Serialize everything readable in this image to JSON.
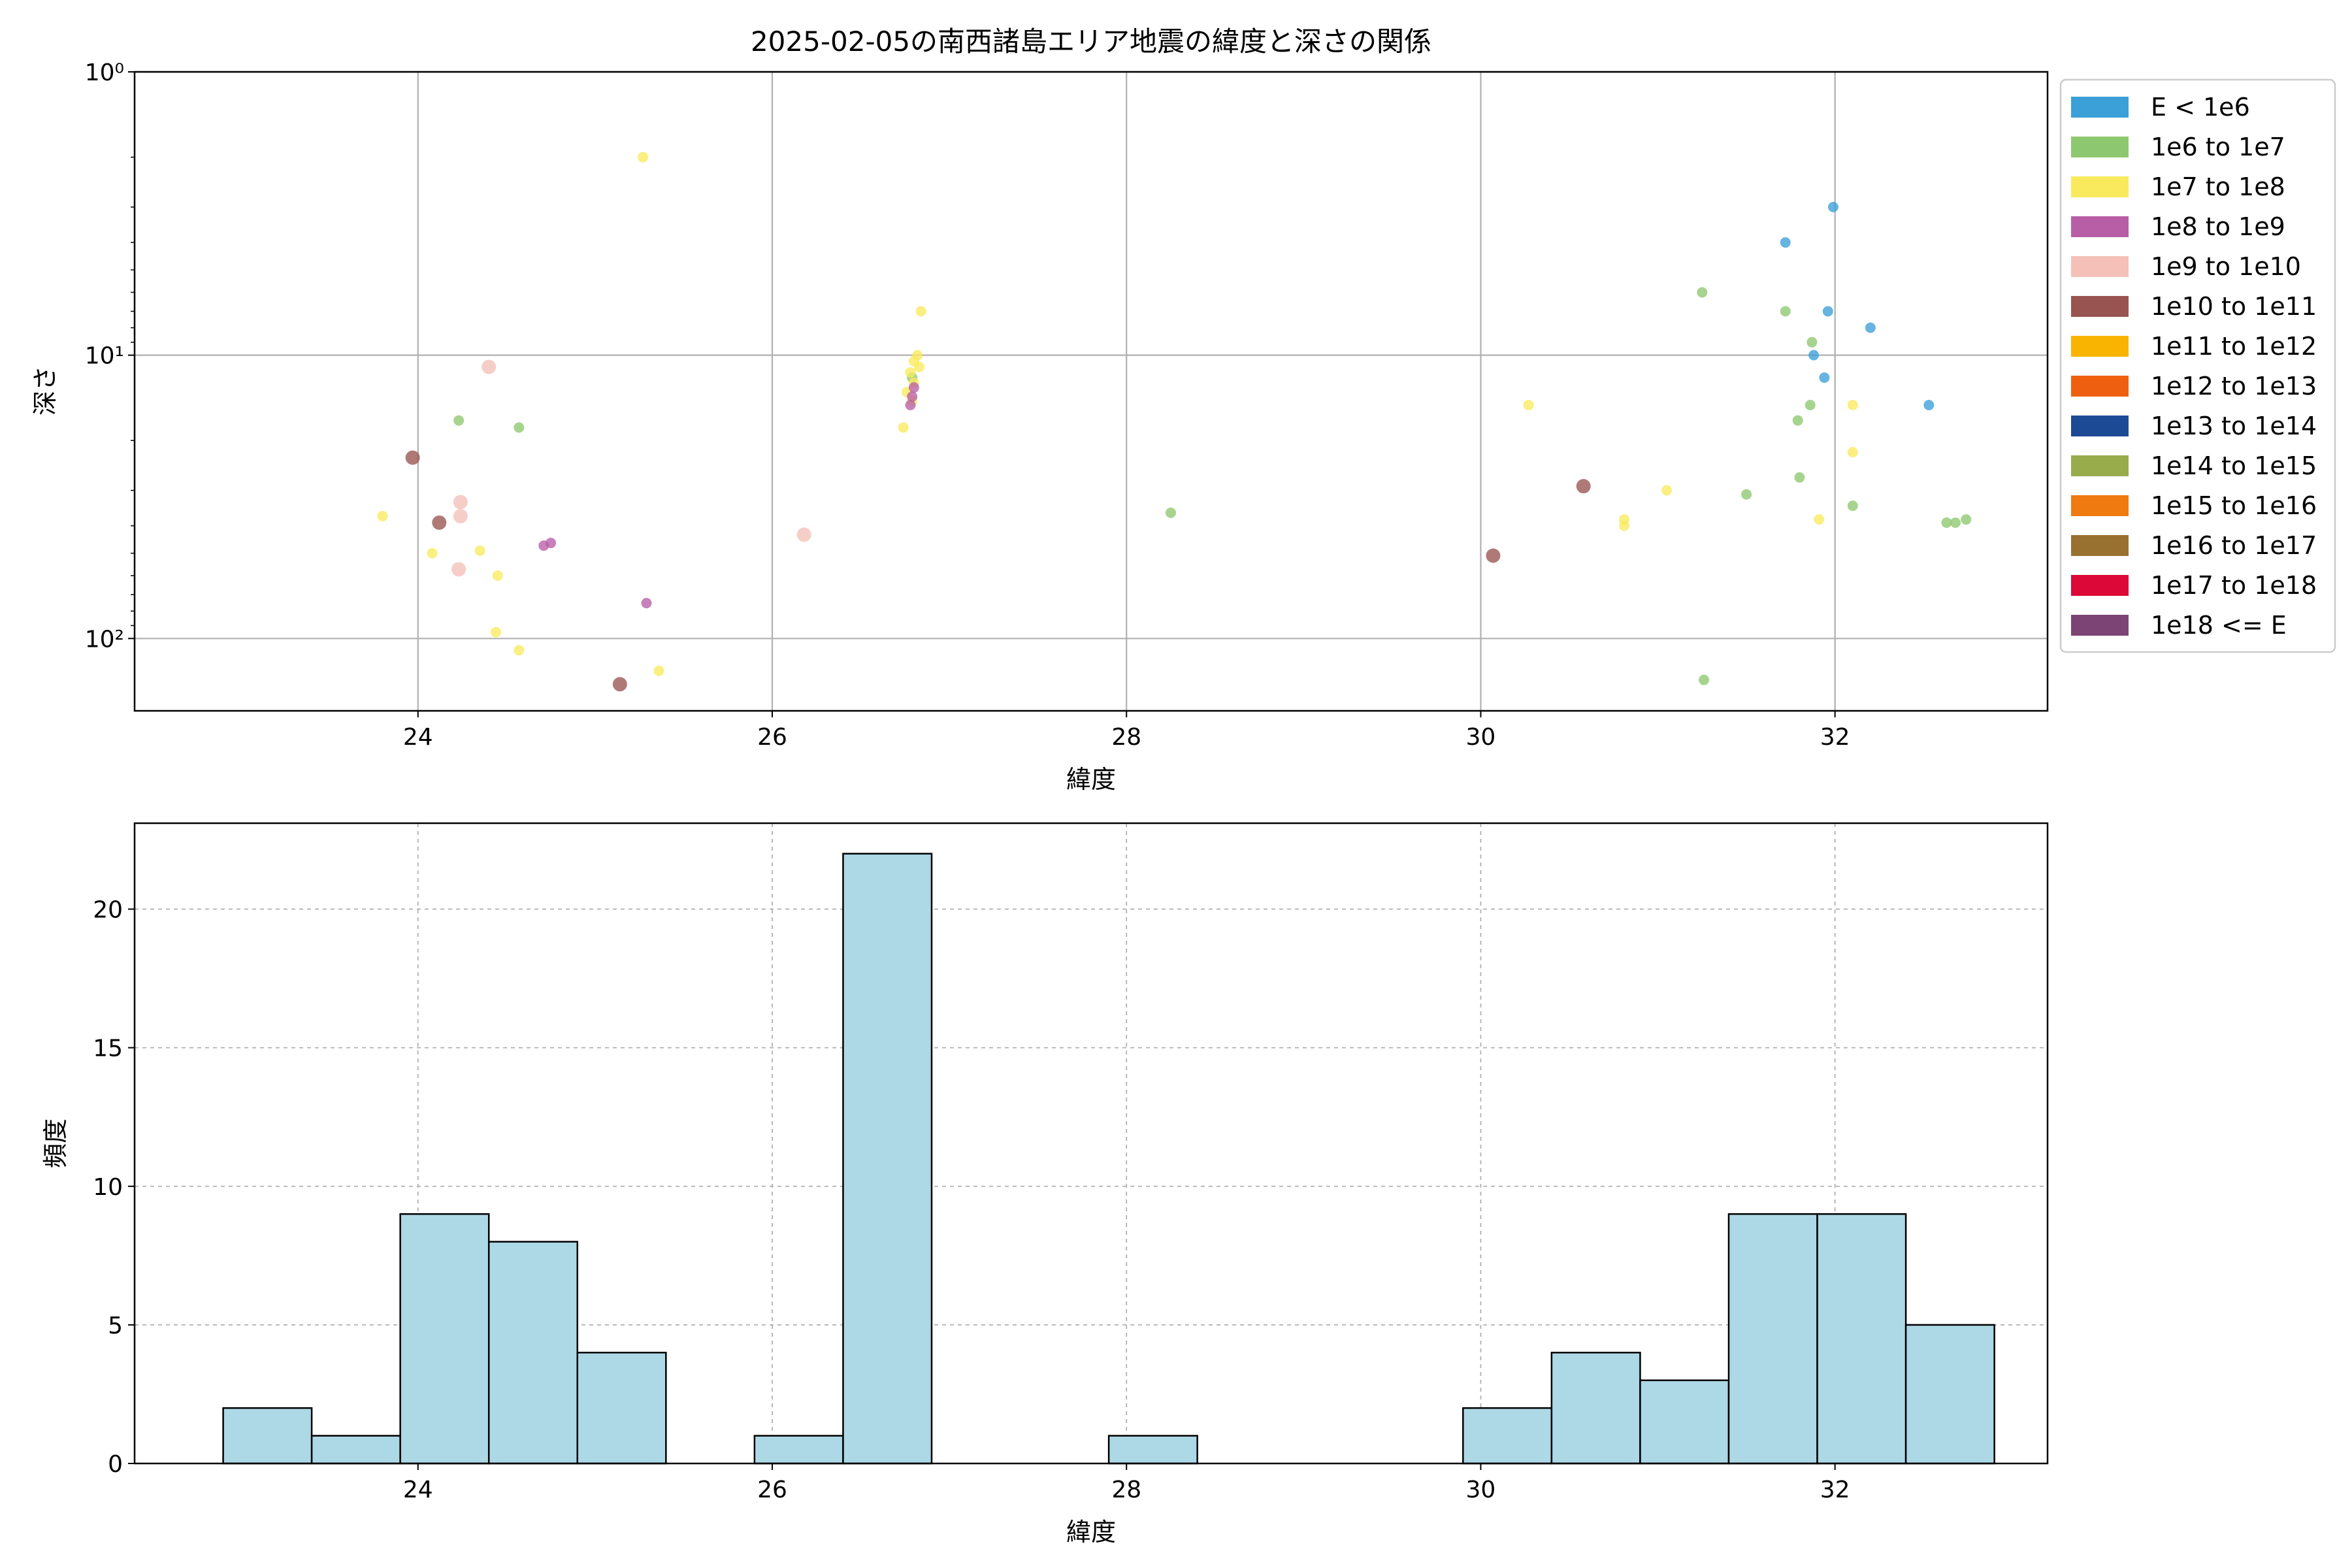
{
  "chart_data": [
    {
      "type": "scatter",
      "title": "2025-02-05の南西諸島エリア地震の緯度と深さの関係",
      "xlabel": "緯度",
      "ylabel": "深さ",
      "xlim": [
        22.4,
        33.2
      ],
      "xticks": [
        24,
        26,
        28,
        30,
        32
      ],
      "y_scale": "log",
      "y_inverted": true,
      "ylim": [
        1.0,
        180
      ],
      "yticks": [
        {
          "value": 1,
          "label": "10⁰"
        },
        {
          "value": 10,
          "label": "10¹"
        },
        {
          "value": 100,
          "label": "10²"
        }
      ],
      "grid": true,
      "legend_placement": "outside-right",
      "legend": [
        {
          "label": "E < 1e6",
          "color": "#3b9fd8"
        },
        {
          "label": "1e6 to 1e7",
          "color": "#8dc870"
        },
        {
          "label": "1e7 to 1e8",
          "color": "#f8ea5c"
        },
        {
          "label": "1e8 to 1e9",
          "color": "#b85ea6"
        },
        {
          "label": "1e9 to 1e10",
          "color": "#f4c0b8"
        },
        {
          "label": "1e10 to 1e11",
          "color": "#985450"
        },
        {
          "label": "1e11 to 1e12",
          "color": "#f8b400"
        },
        {
          "label": "1e12 to 1e13",
          "color": "#ee6010"
        },
        {
          "label": "1e13 to 1e14",
          "color": "#1c4a94"
        },
        {
          "label": "1e14 to 1e15",
          "color": "#98ac4c"
        },
        {
          "label": "1e15 to 1e16",
          "color": "#ee7a10"
        },
        {
          "label": "1e16 to 1e17",
          "color": "#987030"
        },
        {
          "label": "1e17 to 1e18",
          "color": "#dc0838"
        },
        {
          "label": "1e18 <= E",
          "color": "#7c4474"
        }
      ],
      "series": [
        {
          "category": "E < 1e6",
          "points": [
            [
              31.72,
              4.0
            ],
            [
              31.99,
              3.0
            ],
            [
              31.96,
              7.0
            ],
            [
              31.88,
              10.0
            ],
            [
              31.94,
              12.0
            ],
            [
              32.2,
              8.0
            ],
            [
              32.53,
              15.0
            ]
          ]
        },
        {
          "category": "1e6 to 1e7",
          "points": [
            [
              24.23,
              17.0
            ],
            [
              24.57,
              18.0
            ],
            [
              26.79,
              12.0
            ],
            [
              28.25,
              36.0
            ],
            [
              31.25,
              6.0
            ],
            [
              31.72,
              7.0
            ],
            [
              31.87,
              9.0
            ],
            [
              31.86,
              15.0
            ],
            [
              31.79,
              17.0
            ],
            [
              31.8,
              27.0
            ],
            [
              31.5,
              31.0
            ],
            [
              32.1,
              34.0
            ],
            [
              32.63,
              39.0
            ],
            [
              32.68,
              39.0
            ],
            [
              32.74,
              38.0
            ],
            [
              31.26,
              140.0
            ]
          ]
        },
        {
          "category": "1e7 to 1e8",
          "points": [
            [
              25.27,
              2.0
            ],
            [
              26.84,
              7.0
            ],
            [
              26.82,
              10.0
            ],
            [
              26.8,
              10.5
            ],
            [
              26.83,
              11.0
            ],
            [
              26.78,
              11.5
            ],
            [
              26.8,
              12.5
            ],
            [
              26.76,
              13.5
            ],
            [
              26.79,
              14.5
            ],
            [
              26.74,
              18.0
            ],
            [
              23.8,
              37.0
            ],
            [
              24.08,
              50.0
            ],
            [
              24.35,
              49.0
            ],
            [
              24.45,
              60.0
            ],
            [
              24.44,
              95.0
            ],
            [
              24.57,
              110.0
            ],
            [
              25.36,
              130.0
            ],
            [
              30.27,
              15.0
            ],
            [
              31.05,
              30.0
            ],
            [
              30.81,
              38.0
            ],
            [
              30.81,
              40.0
            ],
            [
              31.91,
              38.0
            ],
            [
              32.1,
              15.0
            ],
            [
              32.1,
              22.0
            ]
          ]
        },
        {
          "category": "1e8 to 1e9",
          "points": [
            [
              26.8,
              13.0
            ],
            [
              26.79,
              14.0
            ],
            [
              26.78,
              15.0
            ],
            [
              24.71,
              47.0
            ],
            [
              24.75,
              46.0
            ],
            [
              25.29,
              75.0
            ]
          ]
        },
        {
          "category": "1e9 to 1e10",
          "points": [
            [
              24.4,
              11.0
            ],
            [
              24.24,
              33.0
            ],
            [
              24.24,
              37.0
            ],
            [
              24.23,
              57.0
            ],
            [
              26.18,
              43.0
            ]
          ]
        },
        {
          "category": "1e10 to 1e11",
          "points": [
            [
              23.97,
              23.0
            ],
            [
              24.12,
              39.0
            ],
            [
              25.14,
              145.0
            ],
            [
              30.07,
              51.0
            ],
            [
              30.58,
              29.0
            ]
          ]
        }
      ]
    },
    {
      "type": "bar",
      "subtype": "histogram",
      "xlabel": "緯度",
      "ylabel": "頻度",
      "xlim": [
        22.4,
        33.2
      ],
      "ylim": [
        0,
        23.1
      ],
      "xticks": [
        24,
        26,
        28,
        30,
        32
      ],
      "yticks": [
        0,
        5,
        10,
        15,
        20
      ],
      "grid": true,
      "bar_color": "#add8e6",
      "bin_edges": [
        22.9,
        23.4,
        23.9,
        24.4,
        24.9,
        25.4,
        25.9,
        26.4,
        26.9,
        27.4,
        27.9,
        28.4,
        28.9,
        29.4,
        29.9,
        30.4,
        30.9,
        31.4,
        31.9,
        32.4,
        32.9
      ],
      "counts": [
        2,
        1,
        9,
        8,
        4,
        0,
        1,
        22,
        0,
        0,
        1,
        0,
        0,
        0,
        2,
        4,
        3,
        9,
        9,
        5
      ]
    }
  ]
}
